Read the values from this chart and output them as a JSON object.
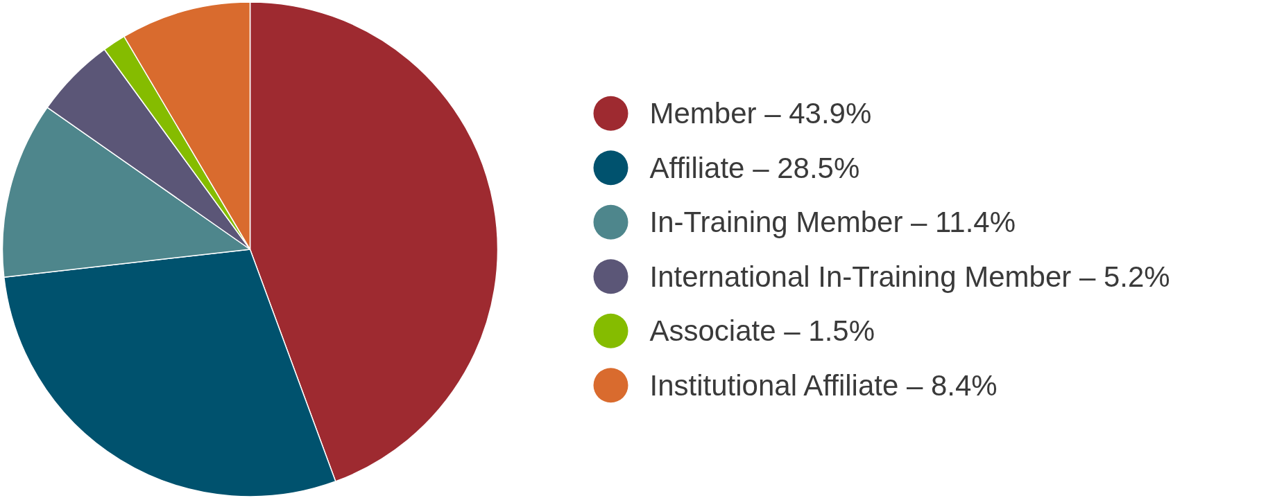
{
  "chart_data": {
    "type": "pie",
    "categories": [
      "Member – 43.9%",
      "Affiliate – 28.5%",
      "In-Training Member – 11.4%",
      "International In-Training Member – 5.2%",
      "Associate – 1.5%",
      "Institutional Affiliate – 8.4%"
    ],
    "values": [
      43.9,
      28.5,
      11.4,
      5.2,
      1.5,
      8.4
    ],
    "colors": [
      "#9e2a30",
      "#00526e",
      "#4e868c",
      "#5b5677",
      "#85bc00",
      "#d96b2e"
    ],
    "legend": "right"
  }
}
